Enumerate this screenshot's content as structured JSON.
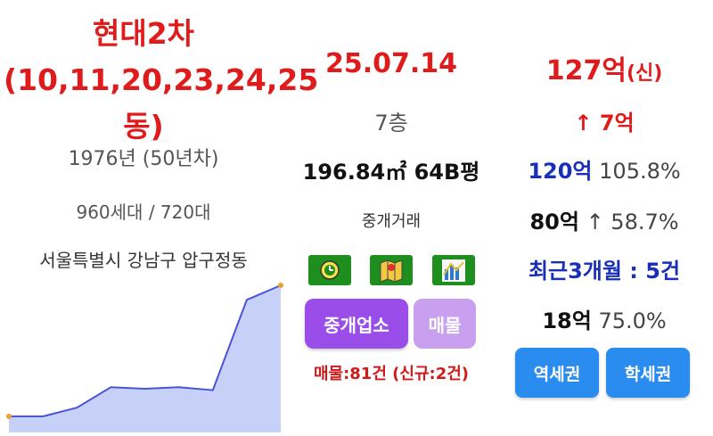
{
  "apartment": {
    "name": "현대2차(10,11,20,23,24,25동)",
    "built": "1976년 (50년차)",
    "units": "960세대 / 720대",
    "address": "서울특별시 강남구 압구정동"
  },
  "trade": {
    "date": "25.07.14",
    "floor": "7층",
    "area": "196.84㎡ 64B평",
    "type": "중개거래"
  },
  "icons": [
    "clock-icon",
    "map-icon",
    "chart-icon"
  ],
  "buttons": {
    "agents": "중개업소",
    "listings": "매물",
    "station": "역세권",
    "school": "학세권"
  },
  "listings_summary": "매물:81건 (신규:2건)",
  "price": {
    "amount": "127억",
    "tag": "(신)",
    "change": "↑ 7억",
    "ref1_price": "120억",
    "ref1_pct": "105.8%",
    "ref2_price": "80억",
    "ref2_pct": "↑ 58.7%",
    "recent": "최근3개월 : 5건",
    "ref3_price": "18억",
    "ref3_pct": "75.0%"
  },
  "colors": {
    "price_red": "#e01b1b",
    "navy": "#1a2fb8",
    "agent_purple": "#9a4de8",
    "listing_purple": "#c9a0f0",
    "button_blue": "#2b8cf0",
    "chart_line": "#4a55d8",
    "chart_fill": "#c7d0f7",
    "chart_end_dot": "#f0a030"
  },
  "chart_data": {
    "type": "area",
    "values": [
      0,
      0,
      3,
      10,
      9.5,
      10,
      9,
      40,
      45
    ]
  }
}
